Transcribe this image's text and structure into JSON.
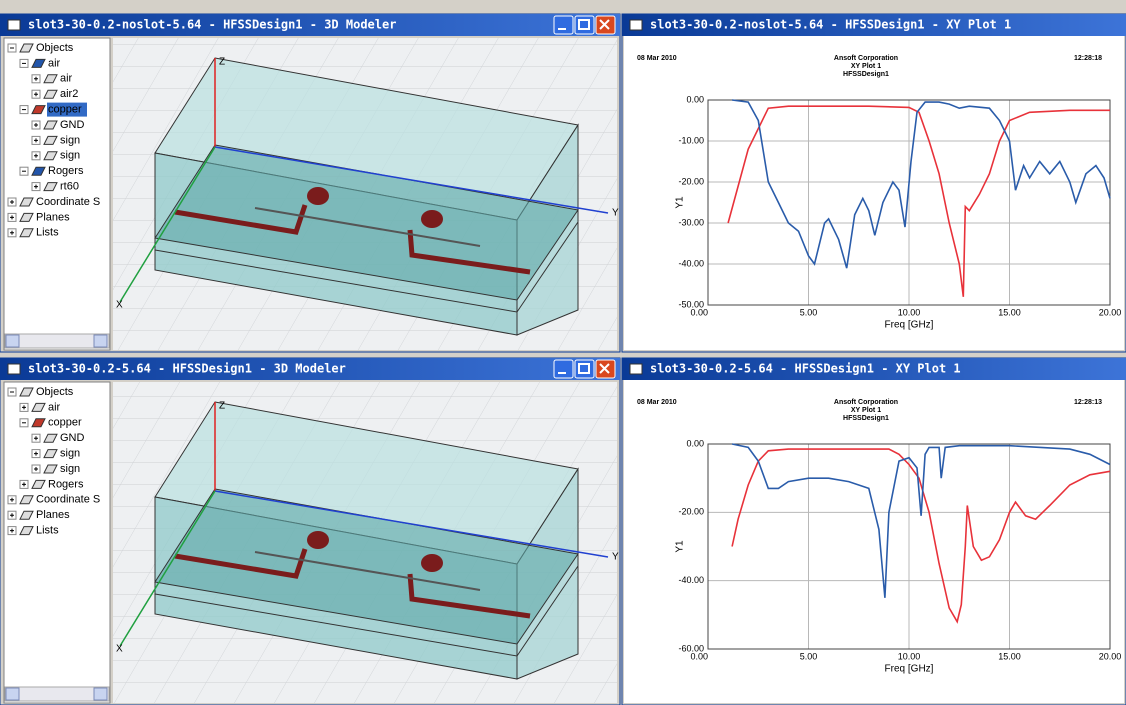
{
  "windows": [
    {
      "title": "slot3-30-0.2-noslot-5.64 - HFSSDesign1 - 3D Modeler",
      "tree": [
        {
          "label": "Objects",
          "children": [
            {
              "label": "air",
              "children": [
                {
                  "label": "air"
                },
                {
                  "label": "air2"
                }
              ]
            },
            {
              "label": "copper",
              "selected": true,
              "children": [
                {
                  "label": "GND"
                },
                {
                  "label": "sign"
                },
                {
                  "label": "sign"
                }
              ]
            },
            {
              "label": "Rogers",
              "children": [
                {
                  "label": "rt60"
                }
              ]
            }
          ]
        },
        {
          "label": "Coordinate S"
        },
        {
          "label": "Planes"
        },
        {
          "label": "Lists"
        }
      ],
      "axis_labels": {
        "z": "Z",
        "y": "Y",
        "x": "X"
      }
    },
    {
      "title": "slot3-30-0.2-noslot-5.64 - HFSSDesign1 - XY Plot 1",
      "chart_data": {
        "type": "line",
        "date": "08 Mar 2010",
        "company": "Ansoft Corporation",
        "title": "XY Plot 1",
        "subtitle": "HFSSDesign1",
        "time": "12:28:18",
        "xlabel": "Freq [GHz]",
        "ylabel": "Y1",
        "xlim": [
          0,
          20
        ],
        "ylim": [
          -50,
          0
        ],
        "xticks": [
          {
            "value": 0,
            "label": "0.00"
          },
          {
            "value": 5,
            "label": "5.00"
          },
          {
            "value": 10,
            "label": "10.00"
          },
          {
            "value": 15,
            "label": "15.00"
          },
          {
            "value": 20,
            "label": "20.00"
          }
        ],
        "yticks": [
          {
            "value": 0,
            "label": "0.00"
          },
          {
            "value": -10,
            "label": "-10.00"
          },
          {
            "value": -20,
            "label": "-20.00"
          },
          {
            "value": -30,
            "label": "-30.00"
          },
          {
            "value": -40,
            "label": "-40.00"
          },
          {
            "value": -50,
            "label": "-50.00"
          }
        ],
        "grid": true,
        "series": [
          {
            "color": "#e8323a",
            "x": [
              1,
              2,
              3,
              4,
              6,
              8,
              10,
              10.5,
              11,
              11.5,
              12,
              12.5,
              12.7,
              12.8,
              13,
              13.5,
              14,
              14.5,
              15,
              16,
              18,
              20
            ],
            "values": [
              -30,
              -12,
              -2,
              -1.5,
              -1.5,
              -1.5,
              -1.8,
              -3,
              -10,
              -18,
              -30,
              -40,
              -48,
              -26,
              -27,
              -23,
              -18,
              -10,
              -5,
              -3,
              -2.5,
              -2.5
            ]
          },
          {
            "color": "#2a5caa",
            "x": [
              1.2,
              2,
              2.5,
              3,
              3.5,
              4,
              4.5,
              5,
              5.3,
              5.8,
              6,
              6.5,
              6.9,
              7.3,
              7.7,
              8,
              8.3,
              8.7,
              9.2,
              9.5,
              9.8,
              10.1,
              10.4,
              10.8,
              11.5,
              12,
              12.5,
              13,
              14,
              14.5,
              15,
              15.3,
              15.7,
              16,
              16.5,
              17,
              17.5,
              18,
              18.3,
              18.8,
              19.3,
              19.7,
              20
            ],
            "values": [
              0,
              -0.5,
              -5,
              -20,
              -25,
              -30,
              -32,
              -38,
              -40,
              -30,
              -29,
              -34,
              -41,
              -28,
              -24,
              -27,
              -33,
              -25,
              -20,
              -22,
              -31,
              -15,
              -3,
              -0.5,
              -0.5,
              -1,
              -2,
              -1.5,
              -2,
              -5,
              -10,
              -22,
              -16,
              -19,
              -15,
              -18,
              -15,
              -20,
              -25,
              -18,
              -16,
              -19,
              -24
            ]
          }
        ]
      }
    },
    {
      "title": "slot3-30-0.2-5.64 - HFSSDesign1 - 3D Modeler",
      "tree": [
        {
          "label": "Objects",
          "children": [
            {
              "label": "air"
            },
            {
              "label": "copper",
              "children": [
                {
                  "label": "GND"
                },
                {
                  "label": "sign"
                },
                {
                  "label": "sign"
                }
              ]
            },
            {
              "label": "Rogers"
            }
          ]
        },
        {
          "label": "Coordinate S"
        },
        {
          "label": "Planes"
        },
        {
          "label": "Lists"
        }
      ],
      "axis_labels": {
        "z": "Z",
        "y": "Y",
        "x": "X"
      }
    },
    {
      "title": "slot3-30-0.2-5.64 - HFSSDesign1 - XY Plot 1",
      "chart_data": {
        "type": "line",
        "date": "08 Mar 2010",
        "company": "Ansoft Corporation",
        "title": "XY Plot 1",
        "subtitle": "HFSSDesign1",
        "time": "12:28:13",
        "xlabel": "Freq [GHz]",
        "ylabel": "Y1",
        "xlim": [
          0,
          20
        ],
        "ylim": [
          -60,
          0
        ],
        "xticks": [
          {
            "value": 0,
            "label": "0.00"
          },
          {
            "value": 5,
            "label": "5.00"
          },
          {
            "value": 10,
            "label": "10.00"
          },
          {
            "value": 15,
            "label": "15.00"
          },
          {
            "value": 20,
            "label": "20.00"
          }
        ],
        "yticks": [
          {
            "value": 0,
            "label": "0.00"
          },
          {
            "value": -20,
            "label": "-20.00"
          },
          {
            "value": -40,
            "label": "-40.00"
          },
          {
            "value": -60,
            "label": "-60.00"
          }
        ],
        "grid": true,
        "series": [
          {
            "color": "#e8323a",
            "x": [
              1.2,
              1.5,
              2,
              2.5,
              3,
              4,
              9,
              9.5,
              10,
              10.5,
              11,
              11.5,
              12,
              12.4,
              12.6,
              12.8,
              12.9,
              13.2,
              13.6,
              14,
              14.5,
              15,
              15.3,
              15.8,
              16.3,
              17,
              18,
              19,
              20
            ],
            "values": [
              -30,
              -22,
              -12,
              -5,
              -2,
              -1.5,
              -1.5,
              -3,
              -6,
              -10,
              -20,
              -35,
              -48,
              -52,
              -47,
              -30,
              -18,
              -30,
              -34,
              -33,
              -28,
              -20,
              -17,
              -21,
              -22,
              -18,
              -12,
              -9,
              -8
            ]
          },
          {
            "color": "#2a5caa",
            "x": [
              1.2,
              2,
              2.5,
              3,
              3.5,
              4,
              5,
              6,
              7,
              8,
              8.5,
              8.8,
              9,
              9.5,
              10,
              10.4,
              10.6,
              10.8,
              11,
              11.5,
              11.6,
              11.8,
              12.5,
              15,
              18,
              19,
              20
            ],
            "values": [
              0,
              -1,
              -5,
              -13,
              -13,
              -11,
              -10,
              -10,
              -11,
              -13,
              -25,
              -45,
              -20,
              -5,
              -4,
              -7,
              -21,
              -3,
              -1,
              -1,
              -10,
              -1,
              -0.5,
              -0.5,
              -1.5,
              -3,
              -6
            ]
          }
        ]
      }
    }
  ]
}
